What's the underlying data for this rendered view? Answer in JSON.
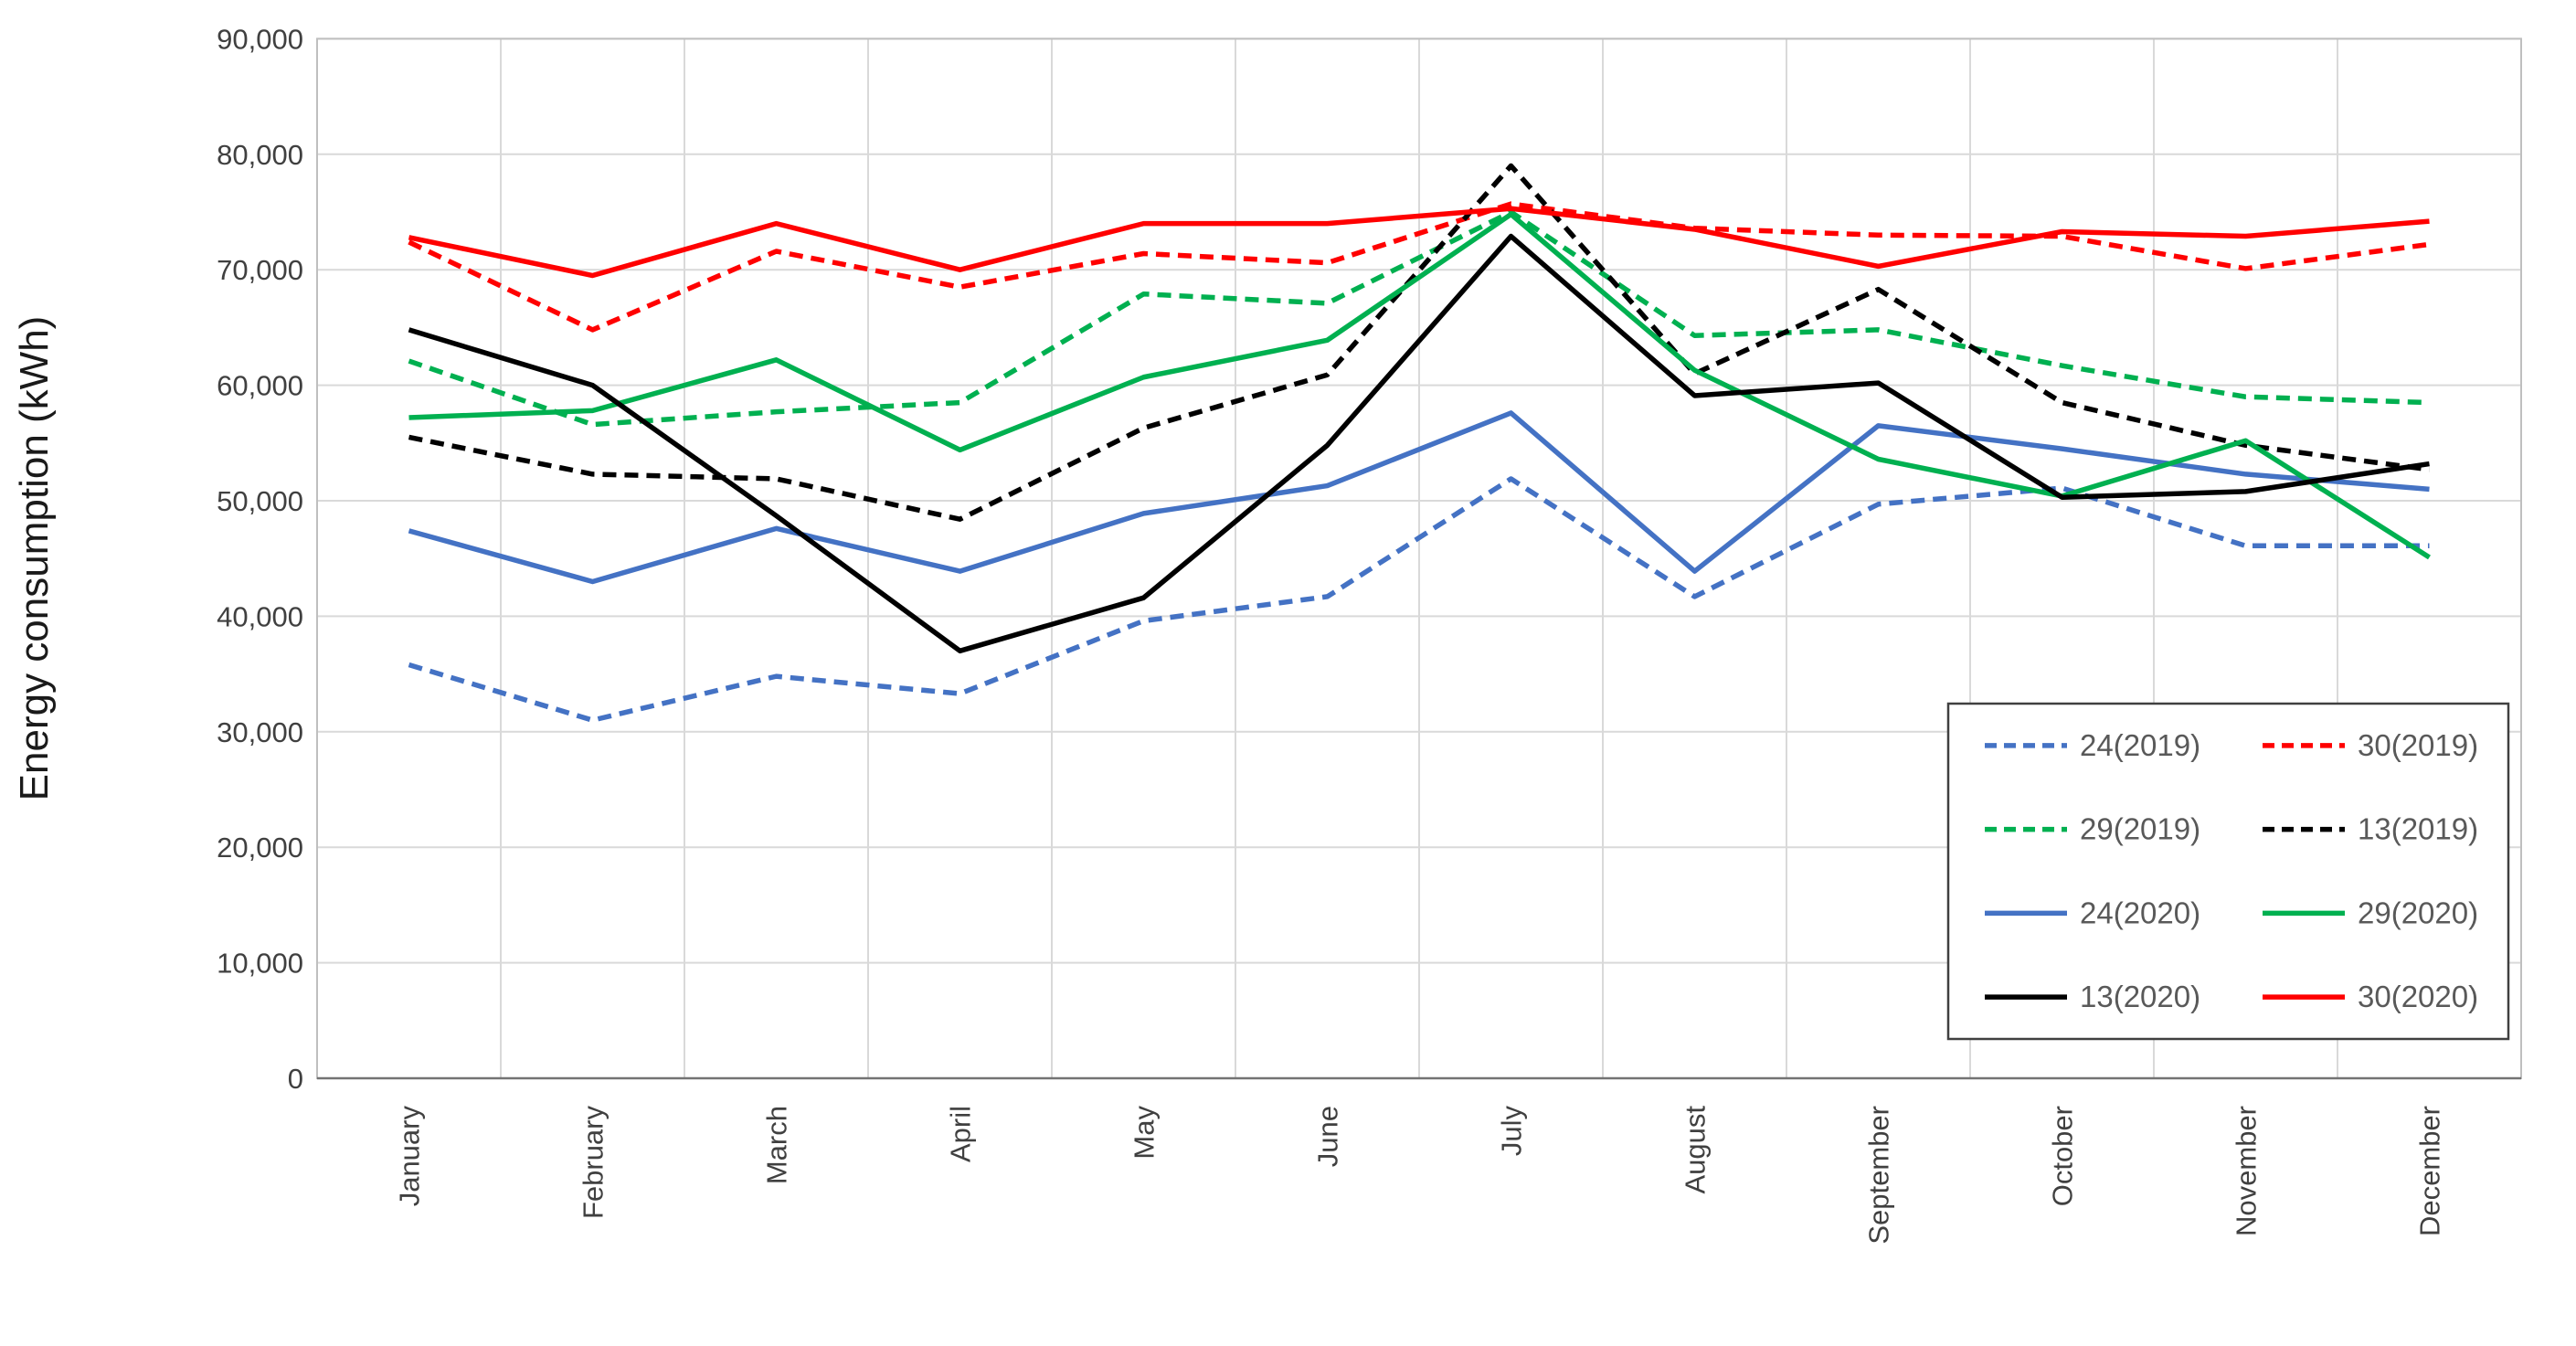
{
  "chart_data": {
    "type": "line",
    "title": "",
    "xlabel": "",
    "ylabel": "Energy consumption (kWh)",
    "ylim": [
      0,
      90000
    ],
    "ytick_step": 10000,
    "ytick_labels": [
      "0",
      "10,000",
      "20,000",
      "30,000",
      "40,000",
      "50,000",
      "60,000",
      "70,000",
      "80,000",
      "90,000"
    ],
    "grid": true,
    "legend_position": "bottom-right inside",
    "categories": [
      "January",
      "February",
      "March",
      "April",
      "May",
      "June",
      "July",
      "August",
      "September",
      "October",
      "November",
      "December"
    ],
    "series": [
      {
        "name": "24(2019)",
        "color": "#4472C4",
        "dashed": true,
        "values": [
          35800,
          31000,
          34800,
          33300,
          39600,
          41700,
          51900,
          41700,
          49700,
          51100,
          46100,
          46100
        ]
      },
      {
        "name": "30(2019)",
        "color": "#FF0000",
        "dashed": true,
        "values": [
          72400,
          64800,
          71600,
          68500,
          71400,
          70600,
          75700,
          73600,
          73000,
          72900,
          70100,
          72200
        ]
      },
      {
        "name": "29(2019)",
        "color": "#00B050",
        "dashed": true,
        "values": [
          62100,
          56600,
          57700,
          58500,
          67900,
          67100,
          75000,
          64300,
          64800,
          61700,
          59000,
          58500
        ]
      },
      {
        "name": "13(2019)",
        "color": "#000000",
        "dashed": true,
        "values": [
          55500,
          52300,
          51900,
          48400,
          56300,
          60900,
          79000,
          61000,
          68300,
          58500,
          54800,
          52700
        ]
      },
      {
        "name": "24(2020)",
        "color": "#4472C4",
        "dashed": false,
        "values": [
          47400,
          43000,
          47600,
          43900,
          48900,
          51300,
          57600,
          43900,
          56500,
          54500,
          52300,
          51000
        ]
      },
      {
        "name": "29(2020)",
        "color": "#00B050",
        "dashed": false,
        "values": [
          57200,
          57800,
          62200,
          54400,
          60700,
          63900,
          74800,
          61300,
          53600,
          50400,
          55200,
          45100
        ]
      },
      {
        "name": "13(2020)",
        "color": "#000000",
        "dashed": false,
        "values": [
          64800,
          60000,
          48700,
          37000,
          41600,
          54800,
          72900,
          59100,
          60200,
          50300,
          50800,
          53200
        ]
      },
      {
        "name": "30(2020)",
        "color": "#FF0000",
        "dashed": false,
        "values": [
          72800,
          69500,
          74000,
          70000,
          74000,
          74000,
          75300,
          73500,
          70300,
          73300,
          72900,
          74200
        ]
      }
    ],
    "legend_rows": [
      [
        "24(2019)",
        "30(2019)"
      ],
      [
        "29(2019)",
        "13(2019)"
      ],
      [
        "24(2020)",
        "29(2020)"
      ],
      [
        "13(2020)",
        "30(2020)"
      ]
    ],
    "colors": {
      "grid": "#D9D9D9",
      "plot_border": "#BFBFBF",
      "axis_line": "#737373",
      "tick_text": "#404040",
      "axis_title_text": "#1a1a1a",
      "legend_text": "#595959",
      "legend_border": "#404040",
      "legend_fill": "#ffffff"
    }
  }
}
